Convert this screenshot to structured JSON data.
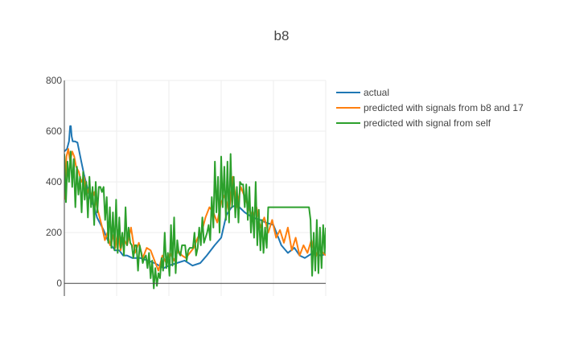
{
  "chart_data": {
    "type": "line",
    "title": "b8",
    "xlabel": "",
    "ylabel": "",
    "xlim": [
      0,
      1000
    ],
    "ylim": [
      -50,
      800
    ],
    "yticks": [
      0,
      200,
      400,
      600,
      800
    ],
    "xgrid": [
      0,
      200,
      400,
      600,
      800,
      1000
    ],
    "grid": true,
    "legend_position": "top-right",
    "series": [
      {
        "name": "actual",
        "color": "#1f77b4",
        "x": [
          0,
          10,
          18,
          22,
          25,
          28,
          32,
          40,
          50,
          65,
          75,
          85,
          95,
          105,
          115,
          125,
          135,
          150,
          170,
          195,
          210,
          225,
          240,
          260,
          290,
          320,
          345,
          380,
          400,
          430,
          460,
          490,
          520,
          545,
          575,
          600,
          620,
          640,
          660,
          690,
          720,
          750,
          770,
          800,
          830,
          855,
          880,
          900,
          920,
          950,
          980,
          1000
        ],
        "y": [
          520,
          530,
          560,
          620,
          620,
          580,
          560,
          560,
          555,
          480,
          430,
          390,
          345,
          320,
          300,
          260,
          240,
          210,
          160,
          130,
          130,
          110,
          110,
          100,
          100,
          90,
          80,
          60,
          70,
          80,
          90,
          70,
          80,
          110,
          150,
          180,
          270,
          300,
          310,
          280,
          260,
          250,
          240,
          230,
          150,
          120,
          140,
          110,
          100,
          120,
          110,
          115
        ]
      },
      {
        "name": "predicted with signals from b8 and 17",
        "color": "#ff7f0e",
        "x": [
          0,
          8,
          15,
          22,
          30,
          38,
          45,
          55,
          65,
          75,
          85,
          95,
          105,
          115,
          125,
          135,
          145,
          155,
          165,
          175,
          185,
          195,
          205,
          215,
          225,
          240,
          255,
          270,
          285,
          300,
          315,
          330,
          345,
          360,
          375,
          390,
          405,
          420,
          435,
          450,
          465,
          480,
          495,
          510,
          525,
          540,
          555,
          570,
          585,
          600,
          615,
          630,
          645,
          660,
          675,
          690,
          705,
          720,
          735,
          750,
          765,
          780,
          795,
          810,
          825,
          840,
          855,
          870,
          885,
          900,
          915,
          930,
          945,
          960,
          975,
          990,
          1000
        ],
        "y": [
          330,
          500,
          530,
          480,
          520,
          500,
          460,
          440,
          400,
          420,
          350,
          380,
          330,
          360,
          300,
          260,
          220,
          170,
          200,
          150,
          190,
          140,
          210,
          130,
          180,
          150,
          220,
          120,
          160,
          100,
          140,
          130,
          90,
          50,
          110,
          80,
          120,
          90,
          130,
          110,
          100,
          120,
          140,
          180,
          200,
          260,
          300,
          280,
          240,
          320,
          350,
          280,
          420,
          300,
          380,
          340,
          300,
          260,
          300,
          220,
          260,
          200,
          250,
          180,
          210,
          160,
          220,
          130,
          180,
          110,
          150,
          120,
          170,
          100,
          140,
          120,
          110
        ]
      },
      {
        "name": "predicted with signal from self",
        "color": "#2ca02c",
        "x": [
          0,
          6,
          12,
          18,
          24,
          30,
          36,
          42,
          48,
          54,
          60,
          66,
          72,
          78,
          84,
          90,
          96,
          102,
          108,
          114,
          120,
          126,
          132,
          138,
          144,
          150,
          156,
          162,
          168,
          174,
          180,
          186,
          192,
          198,
          204,
          210,
          216,
          222,
          228,
          234,
          240,
          246,
          252,
          258,
          264,
          270,
          276,
          282,
          288,
          294,
          300,
          306,
          312,
          318,
          324,
          330,
          336,
          342,
          348,
          354,
          360,
          366,
          372,
          378,
          384,
          390,
          396,
          402,
          408,
          414,
          420,
          426,
          432,
          438,
          444,
          450,
          456,
          462,
          468,
          474,
          480,
          486,
          492,
          498,
          504,
          510,
          516,
          522,
          528,
          534,
          540,
          546,
          552,
          558,
          564,
          570,
          576,
          582,
          588,
          594,
          600,
          606,
          612,
          618,
          624,
          630,
          636,
          642,
          648,
          654,
          660,
          666,
          672,
          678,
          684,
          690,
          696,
          702,
          708,
          714,
          720,
          726,
          732,
          738,
          744,
          750,
          756,
          762,
          768,
          774,
          780,
          786,
          792,
          798,
          804,
          810,
          816,
          822,
          828,
          834,
          840,
          846,
          852,
          858,
          864,
          870,
          876,
          882,
          888,
          894,
          900,
          906,
          912,
          918,
          924,
          930,
          936,
          942,
          948,
          954,
          960,
          966,
          972,
          978,
          984,
          990,
          996,
          1000
        ],
        "y": [
          510,
          320,
          480,
          400,
          520,
          380,
          490,
          300,
          460,
          350,
          420,
          280,
          440,
          330,
          400,
          260,
          420,
          300,
          380,
          230,
          400,
          280,
          380,
          380,
          360,
          380,
          250,
          340,
          160,
          300,
          140,
          280,
          130,
          330,
          120,
          260,
          140,
          200,
          110,
          300,
          150,
          220,
          160,
          150,
          100,
          150,
          150,
          50,
          150,
          120,
          80,
          100,
          110,
          60,
          120,
          20,
          90,
          -20,
          60,
          -10,
          40,
          20,
          100,
          50,
          200,
          60,
          120,
          30,
          230,
          70,
          260,
          40,
          170,
          120,
          110,
          150,
          150,
          150,
          90,
          130,
          140,
          140,
          140,
          200,
          110,
          140,
          220,
          150,
          260,
          160,
          180,
          200,
          230,
          170,
          340,
          220,
          480,
          280,
          420,
          200,
          500,
          300,
          460,
          250,
          480,
          240,
          510,
          300,
          420,
          260,
          380,
          240,
          400,
          390,
          390,
          300,
          390,
          250,
          380,
          200,
          300,
          180,
          400,
          150,
          290,
          130,
          250,
          120,
          220,
          140,
          300,
          300,
          300,
          300,
          300,
          300,
          300,
          300,
          300,
          300,
          300,
          300,
          300,
          300,
          300,
          300,
          300,
          300,
          300,
          300,
          300,
          300,
          300,
          300,
          300,
          300,
          300,
          250,
          30,
          200,
          50,
          250,
          40,
          220,
          60,
          230,
          120,
          220
        ]
      }
    ]
  }
}
